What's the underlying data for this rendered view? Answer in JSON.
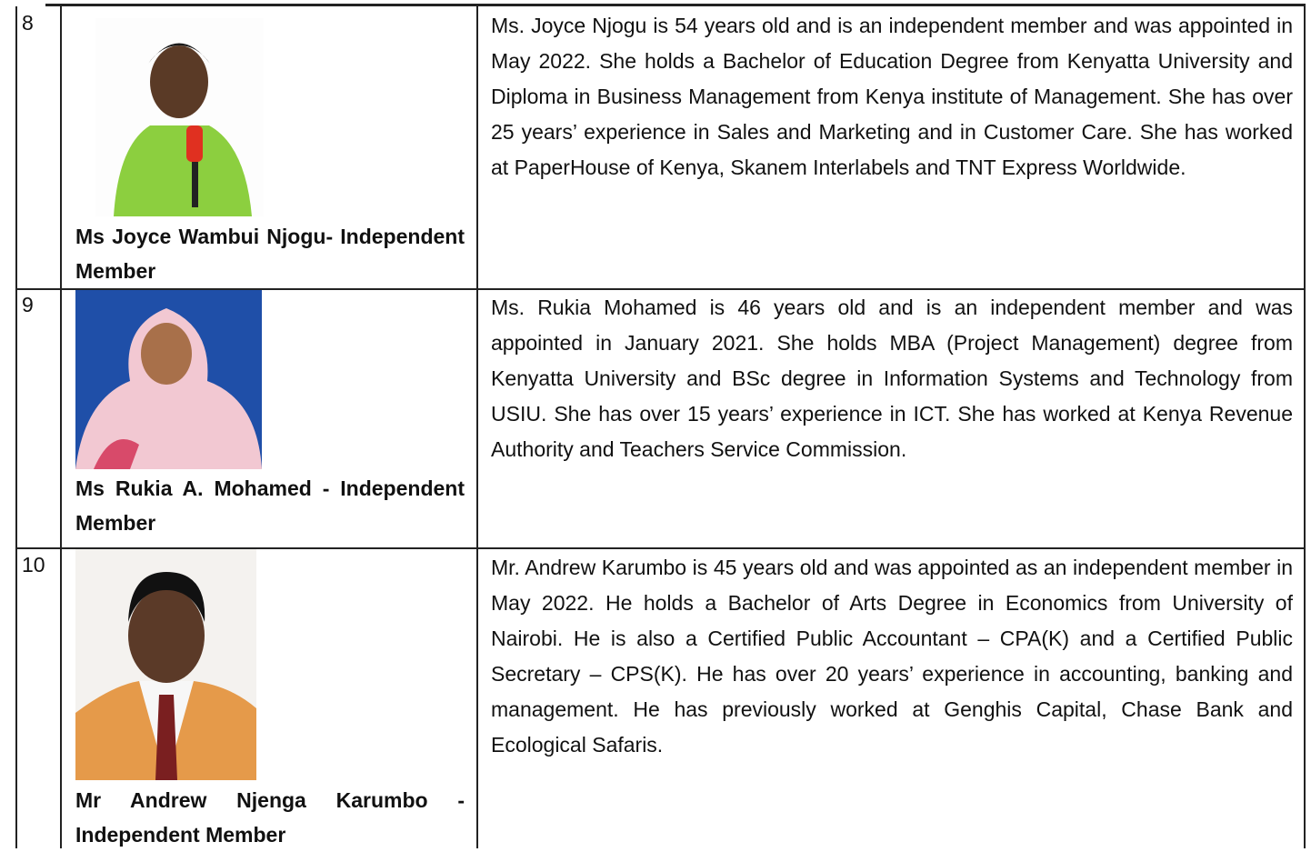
{
  "table": {
    "rows": [
      {
        "number": "8",
        "name": "Ms Joyce Wambui Njogu- Independent Member",
        "bio": "Ms. Joyce Njogu is 54 years old and is an independent member and was appointed in May 2022. She holds a Bachelor of Education Degree from Kenyatta University and Diploma in Business Management from Kenya institute of Management. She has over 25 years’ experience in Sales and Marketing and in Customer Care. She has worked at PaperHouse of Kenya, Skanem Interlabels and TNT Express Worldwide."
      },
      {
        "number": "9",
        "name": "Ms Rukia A. Mohamed - Independent Member",
        "bio": "Ms. Rukia Mohamed is 46 years old and is an independent member and was appointed in January 2021. She holds MBA (Project Management) degree from Kenyatta University and BSc degree in Information Systems and Technology from USIU. She has over 15 years’ experience in ICT. She has worked at Kenya Revenue Authority and Teachers Service Commission."
      },
      {
        "number": "10",
        "name": "Mr Andrew Njenga Karumbo - Independent Member",
        "bio": "Mr. Andrew Karumbo is 45 years old and was appointed as an independent member in May 2022. He holds a Bachelor of Arts Degree in Economics from University of Nairobi. He is also a Certified Public Accountant – CPA(K) and a Certified Public Secretary – CPS(K). He has over 20 years’ experience in accounting, banking and management. He has previously worked at Genghis Capital, Chase Bank and Ecological Safaris."
      }
    ]
  }
}
